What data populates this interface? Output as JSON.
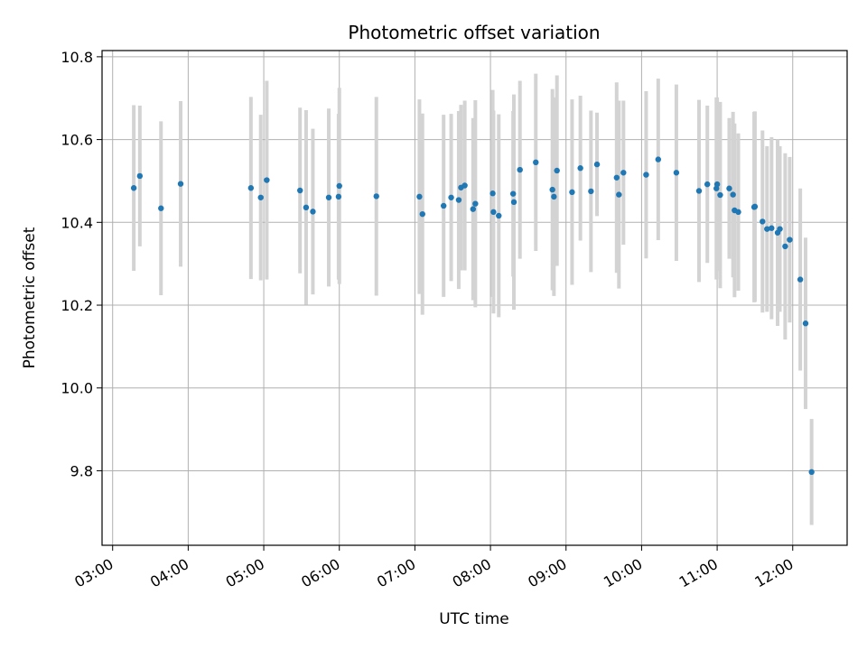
{
  "chart_data": {
    "type": "scatter",
    "title": "Photometric offset variation",
    "xlabel": "UTC time",
    "ylabel": "Photometric offset",
    "x_unit": "hours UTC",
    "xlim": [
      2.86,
      12.72
    ],
    "ylim": [
      9.62,
      10.815
    ],
    "xticks": [
      3,
      4,
      5,
      6,
      7,
      8,
      9,
      10,
      11,
      12
    ],
    "xtick_labels": [
      "03:00",
      "04:00",
      "05:00",
      "06:00",
      "07:00",
      "08:00",
      "09:00",
      "10:00",
      "11:00",
      "12:00"
    ],
    "yticks": [
      9.8,
      10.0,
      10.2,
      10.4,
      10.6,
      10.8
    ],
    "ytick_labels": [
      "9.8",
      "10.0",
      "10.2",
      "10.4",
      "10.6",
      "10.8"
    ],
    "grid": true,
    "colors": {
      "points": "#1f77b4",
      "errorbars": "#d3d3d3",
      "grid": "#b0b0b0"
    },
    "points": [
      {
        "x": 3.28,
        "y": 10.483,
        "err": 0.2
      },
      {
        "x": 3.36,
        "y": 10.512,
        "err": 0.17
      },
      {
        "x": 3.64,
        "y": 10.434,
        "err": 0.21
      },
      {
        "x": 3.9,
        "y": 10.493,
        "err": 0.2
      },
      {
        "x": 4.83,
        "y": 10.483,
        "err": 0.22
      },
      {
        "x": 4.96,
        "y": 10.46,
        "err": 0.2
      },
      {
        "x": 5.04,
        "y": 10.502,
        "err": 0.24
      },
      {
        "x": 5.48,
        "y": 10.477,
        "err": 0.2
      },
      {
        "x": 5.56,
        "y": 10.436,
        "err": 0.235
      },
      {
        "x": 5.65,
        "y": 10.426,
        "err": 0.2
      },
      {
        "x": 5.86,
        "y": 10.46,
        "err": 0.215
      },
      {
        "x": 5.99,
        "y": 10.462,
        "err": 0.2
      },
      {
        "x": 6.0,
        "y": 10.488,
        "err": 0.237
      },
      {
        "x": 6.49,
        "y": 10.463,
        "err": 0.24
      },
      {
        "x": 7.06,
        "y": 10.462,
        "err": 0.235
      },
      {
        "x": 7.1,
        "y": 10.42,
        "err": 0.243
      },
      {
        "x": 7.38,
        "y": 10.44,
        "err": 0.22
      },
      {
        "x": 7.48,
        "y": 10.46,
        "err": 0.202
      },
      {
        "x": 7.58,
        "y": 10.454,
        "err": 0.215
      },
      {
        "x": 7.61,
        "y": 10.484,
        "err": 0.2
      },
      {
        "x": 7.66,
        "y": 10.489,
        "err": 0.205
      },
      {
        "x": 7.77,
        "y": 10.432,
        "err": 0.22
      },
      {
        "x": 7.8,
        "y": 10.445,
        "err": 0.25
      },
      {
        "x": 8.03,
        "y": 10.47,
        "err": 0.25
      },
      {
        "x": 8.04,
        "y": 10.425,
        "err": 0.245
      },
      {
        "x": 8.11,
        "y": 10.416,
        "err": 0.245
      },
      {
        "x": 8.3,
        "y": 10.469,
        "err": 0.2
      },
      {
        "x": 8.31,
        "y": 10.449,
        "err": 0.26
      },
      {
        "x": 8.39,
        "y": 10.527,
        "err": 0.215
      },
      {
        "x": 8.6,
        "y": 10.545,
        "err": 0.214
      },
      {
        "x": 8.82,
        "y": 10.479,
        "err": 0.243
      },
      {
        "x": 8.84,
        "y": 10.462,
        "err": 0.24
      },
      {
        "x": 8.88,
        "y": 10.525,
        "err": 0.23
      },
      {
        "x": 9.08,
        "y": 10.473,
        "err": 0.224
      },
      {
        "x": 9.19,
        "y": 10.531,
        "err": 0.175
      },
      {
        "x": 9.33,
        "y": 10.475,
        "err": 0.195
      },
      {
        "x": 9.41,
        "y": 10.54,
        "err": 0.125
      },
      {
        "x": 9.67,
        "y": 10.508,
        "err": 0.23
      },
      {
        "x": 9.7,
        "y": 10.467,
        "err": 0.227
      },
      {
        "x": 9.76,
        "y": 10.52,
        "err": 0.174
      },
      {
        "x": 10.06,
        "y": 10.515,
        "err": 0.202
      },
      {
        "x": 10.22,
        "y": 10.552,
        "err": 0.195
      },
      {
        "x": 10.46,
        "y": 10.52,
        "err": 0.213
      },
      {
        "x": 10.76,
        "y": 10.476,
        "err": 0.22
      },
      {
        "x": 10.87,
        "y": 10.492,
        "err": 0.19
      },
      {
        "x": 10.99,
        "y": 10.482,
        "err": 0.22
      },
      {
        "x": 11.0,
        "y": 10.492,
        "err": 0.21
      },
      {
        "x": 11.04,
        "y": 10.466,
        "err": 0.225
      },
      {
        "x": 11.16,
        "y": 10.482,
        "err": 0.17
      },
      {
        "x": 11.21,
        "y": 10.467,
        "err": 0.2
      },
      {
        "x": 11.23,
        "y": 10.429,
        "err": 0.21
      },
      {
        "x": 11.28,
        "y": 10.425,
        "err": 0.19
      },
      {
        "x": 11.49,
        "y": 10.437,
        "err": 0.23
      },
      {
        "x": 11.5,
        "y": 10.438,
        "err": 0.23
      },
      {
        "x": 11.6,
        "y": 10.402,
        "err": 0.22
      },
      {
        "x": 11.66,
        "y": 10.384,
        "err": 0.2
      },
      {
        "x": 11.72,
        "y": 10.386,
        "err": 0.22
      },
      {
        "x": 11.8,
        "y": 10.375,
        "err": 0.225
      },
      {
        "x": 11.83,
        "y": 10.384,
        "err": 0.2
      },
      {
        "x": 11.9,
        "y": 10.342,
        "err": 0.225
      },
      {
        "x": 11.96,
        "y": 10.358,
        "err": 0.2
      },
      {
        "x": 12.1,
        "y": 10.262,
        "err": 0.22
      },
      {
        "x": 12.17,
        "y": 10.156,
        "err": 0.207
      },
      {
        "x": 12.25,
        "y": 9.797,
        "err": 0.128
      }
    ]
  }
}
